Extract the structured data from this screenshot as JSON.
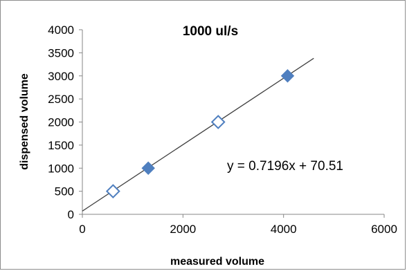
{
  "chart_data": {
    "type": "scatter",
    "title": "1000 ul/s",
    "xlabel": "measured volume",
    "ylabel": "dispensed volume",
    "xlim": [
      0,
      6000
    ],
    "ylim": [
      0,
      4000
    ],
    "xticks": [
      0,
      2000,
      4000,
      6000
    ],
    "yticks": [
      0,
      500,
      1000,
      1500,
      2000,
      2500,
      3000,
      3500,
      4000
    ],
    "grid": false,
    "series": [
      {
        "marker": "diamond-filled",
        "color": "#4f7fbf",
        "x": [
          1310,
          4080
        ],
        "y": [
          1000,
          3000
        ]
      },
      {
        "marker": "diamond-open",
        "color": "#4f7fbf",
        "x": [
          610,
          2700
        ],
        "y": [
          500,
          2000
        ]
      }
    ],
    "trendline": {
      "type": "linear",
      "slope": 0.7196,
      "intercept": 70.51,
      "x_range": [
        0,
        4600
      ],
      "color": "#404040",
      "equation_label": "y = 0.7196x + 70.51"
    }
  }
}
